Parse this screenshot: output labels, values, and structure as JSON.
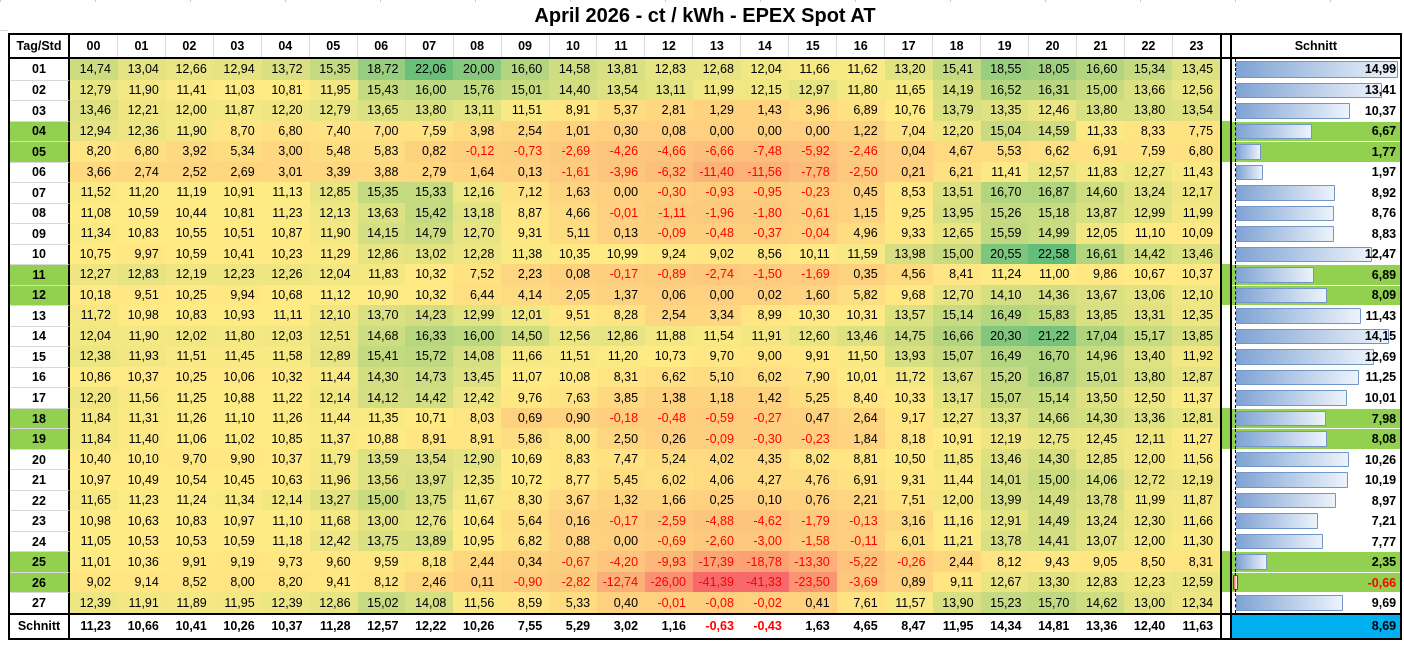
{
  "title": "April 2026 - ct / kWh - EPEX Spot AT",
  "colors": {
    "weekend_green": "#92D050",
    "footer_total_bg": "#00B0F0",
    "negative_text": "#FF0000",
    "scale_min_red": "#F8696B",
    "scale_mid_yellow": "#FFEB84",
    "scale_max_green": "#63BE7B",
    "bar_fill_start": "#7FA3D4",
    "bar_fill_end": "#EDF3FB",
    "bar_border": "#7396C8",
    "bar_negative": "#FF0000",
    "border_black": "#000000",
    "gridline_gray": "#D9D9D9"
  },
  "chart_data": {
    "type": "heatmap",
    "title": "April 2026 - ct / kWh - EPEX Spot AT",
    "corner_label": "Tag/Std",
    "avg_label": "Schnitt",
    "footer_label": "Schnitt",
    "number_format": "comma-decimal, 2 places",
    "legend": "color scale red(min) - yellow(mid) - green(max); blue data bars in average column",
    "hours": [
      "00",
      "01",
      "02",
      "03",
      "04",
      "05",
      "06",
      "07",
      "08",
      "09",
      "10",
      "11",
      "12",
      "13",
      "14",
      "15",
      "16",
      "17",
      "18",
      "19",
      "20",
      "21",
      "22",
      "23"
    ],
    "days": [
      "01",
      "02",
      "03",
      "04",
      "05",
      "06",
      "07",
      "08",
      "09",
      "10",
      "11",
      "12",
      "13",
      "14",
      "15",
      "16",
      "17",
      "18",
      "19",
      "20",
      "21",
      "22",
      "23",
      "24",
      "25",
      "26",
      "27"
    ],
    "weekend_days": [
      "04",
      "05",
      "11",
      "12",
      "18",
      "19",
      "25",
      "26"
    ],
    "values": [
      [
        14.74,
        13.04,
        12.66,
        12.94,
        13.72,
        15.35,
        18.72,
        22.06,
        20.0,
        16.6,
        14.58,
        13.81,
        12.83,
        12.68,
        12.04,
        11.66,
        11.62,
        13.2,
        15.41,
        18.55,
        18.05,
        16.6,
        15.34,
        13.45
      ],
      [
        12.79,
        11.9,
        11.41,
        11.03,
        10.81,
        11.95,
        15.43,
        16.0,
        15.76,
        15.01,
        14.4,
        13.54,
        13.11,
        11.99,
        12.15,
        12.97,
        11.8,
        11.65,
        14.19,
        16.52,
        16.31,
        15.0,
        13.66,
        12.56
      ],
      [
        13.46,
        12.21,
        12.0,
        11.87,
        12.2,
        12.79,
        13.65,
        13.8,
        13.11,
        11.51,
        8.91,
        5.37,
        2.81,
        1.29,
        1.43,
        3.96,
        6.89,
        10.76,
        13.79,
        13.35,
        12.46,
        13.8,
        13.8,
        13.54
      ],
      [
        12.94,
        12.36,
        11.9,
        8.7,
        6.8,
        7.4,
        7.0,
        7.59,
        3.98,
        2.54,
        1.01,
        0.3,
        0.08,
        0.0,
        0.0,
        0.0,
        1.22,
        7.04,
        12.2,
        15.04,
        14.59,
        11.33,
        8.33,
        7.75
      ],
      [
        8.2,
        6.8,
        3.92,
        5.34,
        3.0,
        5.48,
        5.83,
        0.82,
        -0.12,
        -0.73,
        -2.69,
        -4.26,
        -4.66,
        -6.66,
        -7.48,
        -5.92,
        -2.46,
        0.04,
        4.67,
        5.53,
        6.62,
        6.91,
        7.59,
        6.8
      ],
      [
        3.66,
        2.74,
        2.52,
        2.69,
        3.01,
        3.39,
        3.88,
        2.79,
        1.64,
        0.13,
        -1.61,
        -3.96,
        -6.32,
        -11.4,
        -11.56,
        -7.78,
        -2.5,
        0.21,
        6.21,
        11.41,
        12.57,
        11.83,
        12.27,
        11.43
      ],
      [
        11.52,
        11.2,
        11.19,
        10.91,
        11.13,
        12.85,
        15.35,
        15.33,
        12.16,
        7.12,
        1.63,
        0.0,
        -0.3,
        -0.93,
        -0.95,
        -0.23,
        0.45,
        8.53,
        13.51,
        16.7,
        16.87,
        14.6,
        13.24,
        12.17
      ],
      [
        11.08,
        10.59,
        10.44,
        10.81,
        11.23,
        12.13,
        13.63,
        15.42,
        13.18,
        8.87,
        4.66,
        -0.01,
        -1.11,
        -1.96,
        -1.8,
        -0.61,
        1.15,
        9.25,
        13.95,
        15.26,
        15.18,
        13.87,
        12.99,
        11.99
      ],
      [
        11.34,
        10.83,
        10.55,
        10.51,
        10.87,
        11.9,
        14.15,
        14.79,
        12.7,
        9.31,
        5.11,
        0.13,
        -0.09,
        -0.48,
        -0.37,
        -0.04,
        4.96,
        9.33,
        12.65,
        15.59,
        14.99,
        12.05,
        11.1,
        10.09
      ],
      [
        10.75,
        9.97,
        10.59,
        10.41,
        10.23,
        11.29,
        12.86,
        13.02,
        12.28,
        11.38,
        10.35,
        10.99,
        9.24,
        9.02,
        8.56,
        10.11,
        11.59,
        13.98,
        15.0,
        20.55,
        22.58,
        16.61,
        14.42,
        13.46
      ],
      [
        12.27,
        12.83,
        12.19,
        12.23,
        12.26,
        12.04,
        11.83,
        10.32,
        7.52,
        2.23,
        0.08,
        -0.17,
        -0.89,
        -2.74,
        -1.5,
        -1.69,
        0.35,
        4.56,
        8.41,
        11.24,
        11.0,
        9.86,
        10.67,
        10.37
      ],
      [
        10.18,
        9.51,
        10.25,
        9.94,
        10.68,
        11.12,
        10.9,
        10.32,
        6.44,
        4.14,
        2.05,
        1.37,
        0.06,
        0.0,
        0.02,
        1.6,
        5.82,
        9.68,
        12.7,
        14.1,
        14.36,
        13.67,
        13.06,
        12.1
      ],
      [
        11.72,
        10.98,
        10.83,
        10.93,
        11.11,
        12.1,
        13.7,
        14.23,
        12.99,
        12.01,
        9.51,
        8.28,
        2.54,
        3.34,
        8.99,
        10.3,
        10.31,
        13.57,
        15.14,
        16.49,
        15.83,
        13.85,
        13.31,
        12.35
      ],
      [
        12.04,
        11.9,
        12.02,
        11.8,
        12.03,
        12.51,
        14.68,
        16.33,
        16.0,
        14.5,
        12.56,
        12.86,
        11.88,
        11.54,
        11.91,
        12.6,
        13.46,
        14.75,
        16.66,
        20.3,
        21.22,
        17.04,
        15.17,
        13.85
      ],
      [
        12.38,
        11.93,
        11.51,
        11.45,
        11.58,
        12.89,
        15.41,
        15.72,
        14.08,
        11.66,
        11.51,
        11.2,
        10.73,
        9.7,
        9.0,
        9.91,
        11.5,
        13.93,
        15.07,
        16.49,
        16.7,
        14.96,
        13.4,
        11.92
      ],
      [
        10.86,
        10.37,
        10.25,
        10.06,
        10.32,
        11.44,
        14.3,
        14.73,
        13.45,
        11.07,
        10.08,
        8.31,
        6.62,
        5.1,
        6.02,
        7.9,
        10.01,
        11.72,
        13.67,
        15.2,
        16.87,
        15.01,
        13.8,
        12.87
      ],
      [
        12.2,
        11.56,
        11.25,
        10.88,
        11.22,
        12.14,
        14.12,
        14.42,
        12.42,
        9.76,
        7.63,
        3.85,
        1.38,
        1.18,
        1.42,
        5.25,
        8.4,
        10.33,
        13.17,
        15.07,
        15.14,
        13.5,
        12.5,
        11.37
      ],
      [
        11.84,
        11.31,
        11.26,
        11.1,
        11.26,
        11.44,
        11.35,
        10.71,
        8.03,
        0.69,
        0.9,
        -0.18,
        -0.48,
        -0.59,
        -0.27,
        0.47,
        2.64,
        9.17,
        12.27,
        13.37,
        14.66,
        14.3,
        13.36,
        12.81
      ],
      [
        11.84,
        11.4,
        11.06,
        11.02,
        10.85,
        11.37,
        10.88,
        8.91,
        8.91,
        5.86,
        8.0,
        2.5,
        0.26,
        -0.09,
        -0.3,
        -0.23,
        1.84,
        8.18,
        10.91,
        12.19,
        12.75,
        12.45,
        12.11,
        11.27
      ],
      [
        10.4,
        10.1,
        9.7,
        9.9,
        10.37,
        11.79,
        13.59,
        13.54,
        12.9,
        10.69,
        8.83,
        7.47,
        5.24,
        4.02,
        4.35,
        8.02,
        8.81,
        10.5,
        11.85,
        13.46,
        14.3,
        12.85,
        12.0,
        11.56
      ],
      [
        10.97,
        10.49,
        10.54,
        10.45,
        10.63,
        11.96,
        13.56,
        13.97,
        12.35,
        10.72,
        8.77,
        5.45,
        6.02,
        4.06,
        4.27,
        4.76,
        6.91,
        9.31,
        11.44,
        14.01,
        15.0,
        14.06,
        12.72,
        12.19
      ],
      [
        11.65,
        11.23,
        11.24,
        11.34,
        12.14,
        13.27,
        15.0,
        13.75,
        11.67,
        8.3,
        3.67,
        1.32,
        1.66,
        0.25,
        0.1,
        0.76,
        2.21,
        7.51,
        12.0,
        13.99,
        14.49,
        13.78,
        11.99,
        11.87
      ],
      [
        10.98,
        10.63,
        10.83,
        10.97,
        11.1,
        11.68,
        13.0,
        12.76,
        10.64,
        5.64,
        0.16,
        -0.17,
        -2.59,
        -4.88,
        -4.62,
        -1.79,
        -0.13,
        3.16,
        11.16,
        12.91,
        14.49,
        13.24,
        12.3,
        11.66
      ],
      [
        11.05,
        10.53,
        10.53,
        10.59,
        11.18,
        12.42,
        13.75,
        13.89,
        10.95,
        6.82,
        0.88,
        0.0,
        -0.69,
        -2.6,
        -3.0,
        -1.58,
        -0.11,
        6.01,
        11.21,
        13.78,
        14.41,
        13.07,
        12.0,
        11.3
      ],
      [
        11.01,
        10.36,
        9.91,
        9.19,
        9.73,
        9.6,
        9.59,
        8.18,
        2.44,
        0.34,
        -0.67,
        -4.2,
        -9.93,
        -17.39,
        -18.78,
        -13.3,
        -5.22,
        -0.26,
        2.44,
        8.12,
        9.43,
        9.05,
        8.5,
        8.31
      ],
      [
        9.02,
        9.14,
        8.52,
        8.0,
        8.2,
        9.41,
        8.12,
        2.46,
        0.11,
        -0.9,
        -2.82,
        -12.74,
        -26.0,
        -41.39,
        -41.33,
        -23.5,
        -3.69,
        0.89,
        9.11,
        12.67,
        13.3,
        12.83,
        12.23,
        12.59
      ],
      [
        12.39,
        11.91,
        11.89,
        11.95,
        12.39,
        12.86,
        15.02,
        14.08,
        11.56,
        8.59,
        5.33,
        0.4,
        -0.01,
        -0.08,
        -0.02,
        0.41,
        7.61,
        11.57,
        13.9,
        15.23,
        15.7,
        14.62,
        13.0,
        12.34
      ]
    ],
    "row_avg": [
      14.99,
      13.41,
      10.37,
      6.67,
      1.77,
      1.97,
      8.92,
      8.76,
      8.83,
      12.47,
      6.89,
      8.09,
      11.43,
      14.15,
      12.69,
      11.25,
      10.01,
      7.98,
      8.08,
      10.26,
      10.19,
      8.97,
      7.21,
      7.77,
      2.35,
      -0.66,
      9.69
    ],
    "col_avg": [
      11.23,
      10.66,
      10.41,
      10.26,
      10.37,
      11.28,
      12.57,
      12.22,
      10.26,
      7.55,
      5.29,
      3.02,
      1.16,
      -0.63,
      -0.43,
      1.63,
      4.65,
      8.47,
      11.95,
      14.34,
      14.81,
      13.36,
      12.4,
      11.63
    ],
    "overall_avg": 8.69
  }
}
